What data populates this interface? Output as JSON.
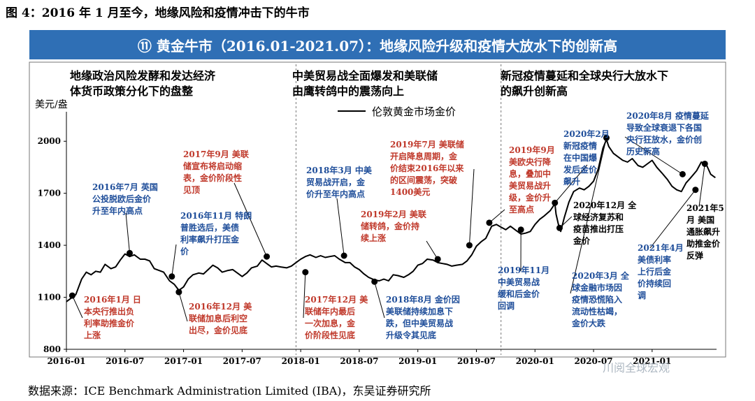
{
  "figure_title": "图 4：2016 年 1 月至今，地缘风险和疫情冲击下的牛市",
  "banner_title": "⑪ 黄金牛市（2016.01-2021.07）：地缘风险升级和疫情大放水下的创新高",
  "source": "数据来源：ICE Benchmark Administration Limited (IBA)，东吴证券研究所",
  "watermark": "川阅全球宏观",
  "colors": {
    "banner": "#2f6fb5",
    "blue_text": "#1f4e9a",
    "red_text": "#c0392b",
    "line": "#000000"
  },
  "chart_data": {
    "type": "line",
    "ylabel": "美元/盎",
    "ylim": [
      800,
      2150
    ],
    "yticks": [
      800,
      1100,
      1400,
      1700,
      2000
    ],
    "xlabel": "",
    "xlim": [
      2016.0,
      2021.55
    ],
    "xticks": [
      {
        "x": 2016.0,
        "label": "2016-01"
      },
      {
        "x": 2016.5,
        "label": "2016-07"
      },
      {
        "x": 2017.0,
        "label": "2017-01"
      },
      {
        "x": 2017.5,
        "label": "2017-07"
      },
      {
        "x": 2018.0,
        "label": "2018-01"
      },
      {
        "x": 2018.5,
        "label": "2018-07"
      },
      {
        "x": 2019.0,
        "label": "2019-01"
      },
      {
        "x": 2019.5,
        "label": "2019-07"
      },
      {
        "x": 2020.0,
        "label": "2020-01"
      },
      {
        "x": 2020.5,
        "label": "2020-07"
      },
      {
        "x": 2021.0,
        "label": "2021-01"
      }
    ],
    "legend": "伦敦黄金市场金价",
    "legend_position": "top-center",
    "series": [
      {
        "name": "伦敦黄金市场金价",
        "x": [
          2016.0,
          2016.04,
          2016.08,
          2016.13,
          2016.17,
          2016.21,
          2016.25,
          2016.29,
          2016.33,
          2016.38,
          2016.42,
          2016.46,
          2016.5,
          2016.54,
          2016.58,
          2016.63,
          2016.67,
          2016.71,
          2016.75,
          2016.79,
          2016.83,
          2016.88,
          2016.92,
          2016.96,
          2017.0,
          2017.04,
          2017.08,
          2017.13,
          2017.17,
          2017.21,
          2017.25,
          2017.29,
          2017.33,
          2017.38,
          2017.42,
          2017.46,
          2017.5,
          2017.54,
          2017.58,
          2017.63,
          2017.67,
          2017.71,
          2017.75,
          2017.79,
          2017.83,
          2017.88,
          2017.92,
          2017.96,
          2018.0,
          2018.04,
          2018.08,
          2018.13,
          2018.17,
          2018.21,
          2018.25,
          2018.29,
          2018.33,
          2018.38,
          2018.42,
          2018.46,
          2018.5,
          2018.54,
          2018.58,
          2018.63,
          2018.67,
          2018.71,
          2018.75,
          2018.79,
          2018.83,
          2018.88,
          2018.92,
          2018.96,
          2019.0,
          2019.04,
          2019.08,
          2019.13,
          2019.17,
          2019.21,
          2019.25,
          2019.29,
          2019.33,
          2019.38,
          2019.42,
          2019.46,
          2019.5,
          2019.54,
          2019.58,
          2019.63,
          2019.67,
          2019.71,
          2019.75,
          2019.79,
          2019.83,
          2019.88,
          2019.92,
          2019.96,
          2020.0,
          2020.04,
          2020.08,
          2020.13,
          2020.17,
          2020.18,
          2020.2,
          2020.22,
          2020.25,
          2020.29,
          2020.33,
          2020.38,
          2020.42,
          2020.46,
          2020.5,
          2020.54,
          2020.58,
          2020.61,
          2020.63,
          2020.67,
          2020.71,
          2020.75,
          2020.79,
          2020.83,
          2020.88,
          2020.92,
          2020.96,
          2021.0,
          2021.04,
          2021.08,
          2021.13,
          2021.17,
          2021.21,
          2021.25,
          2021.29,
          2021.33,
          2021.38,
          2021.42,
          2021.46,
          2021.5,
          2021.54
        ],
        "values": [
          1075,
          1095,
          1115,
          1205,
          1245,
          1230,
          1250,
          1245,
          1290,
          1265,
          1275,
          1315,
          1350,
          1335,
          1345,
          1320,
          1320,
          1310,
          1265,
          1255,
          1245,
          1195,
          1175,
          1140,
          1160,
          1205,
          1230,
          1240,
          1235,
          1260,
          1285,
          1270,
          1245,
          1255,
          1260,
          1240,
          1220,
          1240,
          1270,
          1280,
          1315,
          1295,
          1275,
          1280,
          1275,
          1270,
          1280,
          1300,
          1320,
          1335,
          1345,
          1330,
          1340,
          1330,
          1335,
          1340,
          1320,
          1300,
          1300,
          1275,
          1260,
          1235,
          1215,
          1200,
          1195,
          1205,
          1195,
          1230,
          1225,
          1215,
          1230,
          1250,
          1285,
          1295,
          1320,
          1315,
          1300,
          1295,
          1290,
          1280,
          1285,
          1290,
          1310,
          1345,
          1395,
          1420,
          1440,
          1510,
          1520,
          1505,
          1490,
          1510,
          1490,
          1465,
          1470,
          1480,
          1520,
          1550,
          1570,
          1600,
          1640,
          1580,
          1520,
          1480,
          1560,
          1650,
          1710,
          1730,
          1720,
          1740,
          1770,
          1840,
          1960,
          2010,
          1970,
          1930,
          1910,
          1890,
          1880,
          1900,
          1860,
          1850,
          1870,
          1890,
          1850,
          1820,
          1780,
          1740,
          1720,
          1710,
          1760,
          1790,
          1830,
          1880,
          1870,
          1810,
          1790
        ]
      }
    ],
    "event_markers": [
      {
        "x": 2016.05,
        "y": 1110
      },
      {
        "x": 2016.54,
        "y": 1355
      },
      {
        "x": 2016.9,
        "y": 1220
      },
      {
        "x": 2016.96,
        "y": 1130
      },
      {
        "x": 2017.71,
        "y": 1335
      },
      {
        "x": 2018.04,
        "y": 1245
      },
      {
        "x": 2018.37,
        "y": 1340
      },
      {
        "x": 2018.63,
        "y": 1190
      },
      {
        "x": 2019.17,
        "y": 1320
      },
      {
        "x": 2019.44,
        "y": 1400
      },
      {
        "x": 2019.61,
        "y": 1530
      },
      {
        "x": 2019.88,
        "y": 1490
      },
      {
        "x": 2020.17,
        "y": 1645
      },
      {
        "x": 2020.21,
        "y": 1500
      },
      {
        "x": 2020.61,
        "y": 2020
      },
      {
        "x": 2021.26,
        "y": 1810
      },
      {
        "x": 2021.37,
        "y": 1720
      },
      {
        "x": 2021.45,
        "y": 1870
      }
    ],
    "period_dividers": [
      2017.96,
      2019.71
    ],
    "period_headers": [
      "地缘政治风险发酵和发达经济体货币政策分化下的盘整",
      "中美贸易战全面爆发和美联储由鹰转鸽中的震荡向上",
      "新冠疫情蔓延和全球央行大放水下的飙升创新高"
    ],
    "annotations": [
      {
        "color": "red",
        "lines": [
          "2016年1月 日",
          "本央行推出负",
          "利率助推金价",
          "上涨"
        ]
      },
      {
        "color": "blue",
        "lines": [
          "2016年7月 英国",
          "公投脱欧后金价",
          "升至年内高点"
        ]
      },
      {
        "color": "blue",
        "lines": [
          "2016年11月 特朗",
          "普胜选后，美债",
          "利率飙升打压金",
          "价"
        ]
      },
      {
        "color": "red",
        "lines": [
          "2016年12月 美",
          "联储加息后利空",
          "出尽，金价见底"
        ]
      },
      {
        "color": "red",
        "lines": [
          "2017年9月 美联",
          "储宣布将启动缩",
          "表，金价阶段性",
          "见顶"
        ]
      },
      {
        "color": "red",
        "lines": [
          "2017年12月 美",
          "联储年内最后",
          "一次加息，金",
          "价阶段性见底"
        ]
      },
      {
        "color": "blue",
        "lines": [
          "2018年3月 中美",
          "贸易战开启，金",
          "价升至年内高点"
        ]
      },
      {
        "color": "blue",
        "lines": [
          "2018年8月 金价因",
          "美联储持续加息下",
          "跌，但中美贸易战",
          "升级令其见底"
        ]
      },
      {
        "color": "red",
        "lines": [
          "2019年2月 美联",
          "储转鸽，金价持",
          "续上涨"
        ]
      },
      {
        "color": "red",
        "lines": [
          "2019年7月 美联储",
          "开启降息周期，金",
          "价结束2016年以来",
          "的区间震荡，突破",
          "1400美元"
        ]
      },
      {
        "color": "red",
        "lines": [
          "2019年9月",
          "美欧央行降",
          "息，叠加中",
          "美贸易战升",
          "级，金价升",
          "至高点"
        ]
      },
      {
        "color": "blue",
        "lines": [
          "2019年11月",
          "中美贸易战",
          "缓和后金价",
          "回调"
        ]
      },
      {
        "color": "blue",
        "lines": [
          "2020年2月",
          "新冠疫情",
          "在中国爆",
          "发后金价",
          "飙升"
        ]
      },
      {
        "color": "black",
        "lines": [
          "2020年12月 全",
          "球经济复苏和",
          "疫苗推出打压",
          "金价"
        ]
      },
      {
        "color": "blue",
        "lines": [
          "2020年3月 全",
          "球金融市场因",
          "疫情恐慌陷入",
          "流动性枯竭，",
          "金价大跌"
        ]
      },
      {
        "color": "blue",
        "lines": [
          "2020年8月 疫情蔓延",
          "导致全球衰退下各国",
          "央行狂放水，金价创",
          "历史新高"
        ]
      },
      {
        "color": "blue",
        "lines": [
          "2021年4月",
          "美债利率",
          "上行后金",
          "价持续回",
          "调"
        ]
      },
      {
        "color": "black",
        "lines": [
          "2021年5",
          "月 美国",
          "通胀飙升",
          "助推金价",
          "反弹"
        ]
      }
    ]
  }
}
